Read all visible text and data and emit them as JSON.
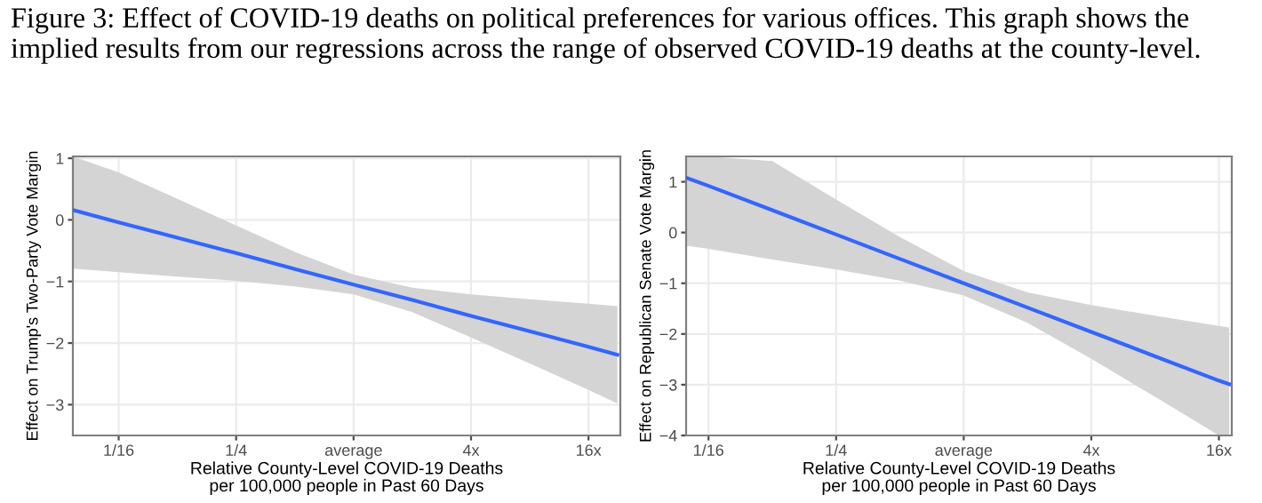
{
  "chart_data": [
    {
      "type": "line",
      "title": "Figure 3: Effect of COVID-19 deaths on political preferences for various offices. This graph shows the implied results from our regressions across the range of observed COVID-19 deaths at the county-level.",
      "xlabel": "Relative County-Level COVID-19 Deaths\nper 100,000 people in Past 60 Days",
      "ylabel": "Effect on Trump's Two-Party Vote Margin",
      "x": [
        0.0364,
        0.0625,
        0.125,
        0.25,
        0.5,
        1,
        2,
        4,
        8,
        16,
        22.5
      ],
      "log": "x",
      "series": [
        {
          "color": "#3366ff",
          "values": [
            0.16,
            -0.04,
            -0.29,
            -0.54,
            -0.8,
            -1.05,
            -1.3,
            -1.56,
            -1.81,
            -2.06,
            -2.19
          ],
          "upper": [
            1.03,
            0.77,
            0.34,
            -0.09,
            -0.52,
            -0.89,
            -1.1,
            -1.21,
            -1.29,
            -1.36,
            -1.4
          ],
          "lower": [
            -0.79,
            -0.85,
            -0.92,
            -0.99,
            -1.08,
            -1.21,
            -1.5,
            -1.91,
            -2.33,
            -2.76,
            -2.98
          ]
        }
      ],
      "xlim": [
        0.0364,
        23.3
      ],
      "ylim": [
        -3.5,
        1.03
      ],
      "xticks": [
        {
          "value": 0.0625,
          "label": "1/16"
        },
        {
          "value": 0.25,
          "label": "1/4"
        },
        {
          "value": 1,
          "label": "average"
        },
        {
          "value": 4,
          "label": "4x"
        },
        {
          "value": 16,
          "label": "16x"
        }
      ],
      "yticks": [
        -3,
        -2,
        -1,
        0,
        1
      ],
      "grid": true,
      "marker": "none",
      "line_style": "solid"
    },
    {
      "type": "line",
      "xlabel": "Relative County-Level COVID-19 Deaths\nper 100,000 people in Past 60 Days",
      "ylabel": "Effect on Republican Senate Vote Margin",
      "x": [
        0.049,
        0.0625,
        0.125,
        0.25,
        0.5,
        1,
        2,
        4,
        8,
        16,
        17.9
      ],
      "log": "x",
      "series": [
        {
          "color": "#3366ff",
          "values": [
            1.08,
            0.92,
            0.44,
            -0.04,
            -0.52,
            -1.0,
            -1.48,
            -1.96,
            -2.44,
            -2.92,
            -2.99
          ],
          "upper": [
            1.5,
            1.5,
            1.41,
            0.65,
            -0.09,
            -0.76,
            -1.18,
            -1.43,
            -1.64,
            -1.84,
            -1.87
          ],
          "lower": [
            -0.26,
            -0.32,
            -0.53,
            -0.73,
            -0.95,
            -1.24,
            -1.78,
            -2.49,
            -3.24,
            -4.0,
            -4.0
          ]
        }
      ],
      "xlim": [
        0.049,
        18.4
      ],
      "ylim": [
        -4,
        1.5
      ],
      "xticks": [
        {
          "value": 0.0625,
          "label": "1/16"
        },
        {
          "value": 0.25,
          "label": "1/4"
        },
        {
          "value": 1,
          "label": "average"
        },
        {
          "value": 4,
          "label": "4x"
        },
        {
          "value": 16,
          "label": "16x"
        }
      ],
      "yticks": [
        -4,
        -3,
        -2,
        -1,
        0,
        1
      ],
      "grid": true,
      "marker": "none",
      "line_style": "solid"
    }
  ]
}
